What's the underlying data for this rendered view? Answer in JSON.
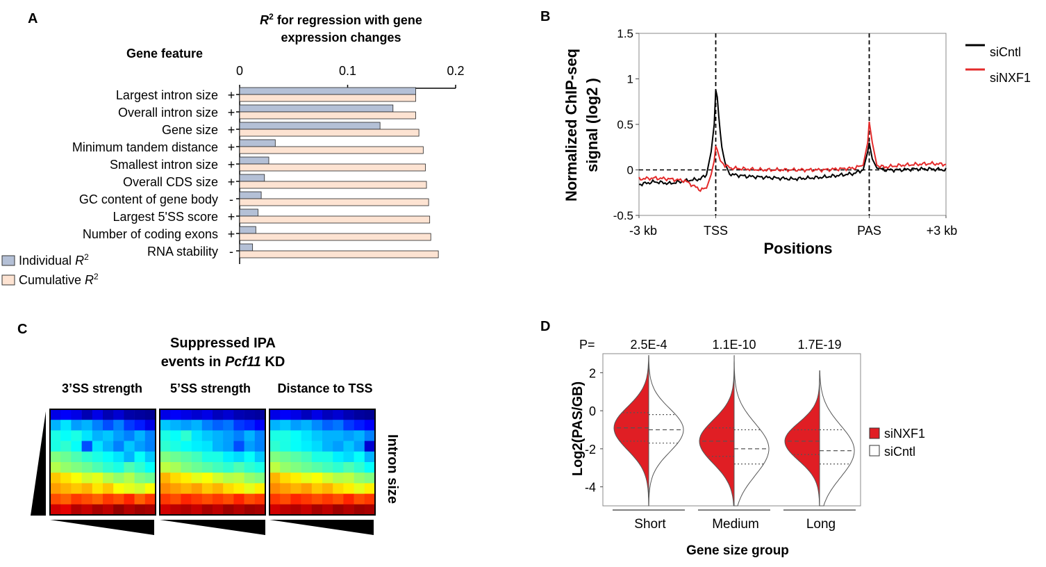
{
  "colors": {
    "individual": "#b4c0d6",
    "cumulative": "#fde3d2",
    "siCntl": "#000000",
    "siNXF1": "#e32a2a",
    "violin_red": "#e01e24"
  },
  "panels": {
    "A": "A",
    "B": "B",
    "C": "C",
    "D": "D"
  },
  "chart_data": [
    {
      "panel": "A",
      "type": "bar",
      "orientation": "horizontal",
      "title_r": "R",
      "title_sup": "2",
      "title_line1_rest": " for regression with gene",
      "title_line2": "expression changes",
      "category_header": "Gene feature",
      "categories": [
        "Largest intron size",
        "Overall intron size",
        "Gene size",
        "Minimum tandem distance",
        "Smallest intron size",
        "Overall CDS size",
        "GC content of gene body",
        "Largest 5'SS score",
        "Number of coding exons",
        "RNA stability"
      ],
      "signs": [
        "+",
        "+",
        "+",
        "+",
        "+",
        "+",
        "-",
        "+",
        "+",
        "-"
      ],
      "xlim": [
        0,
        0.2
      ],
      "xticks": [
        0,
        0.1,
        0.2
      ],
      "xtick_labels": [
        "0",
        "0.1",
        "0.2"
      ],
      "series": [
        {
          "name": "Individual R2",
          "legend_text": "Individual ",
          "values": [
            0.163,
            0.142,
            0.13,
            0.033,
            0.027,
            0.023,
            0.02,
            0.017,
            0.015,
            0.012
          ]
        },
        {
          "name": "Cumulative R2",
          "legend_text": "Cumulative ",
          "values": [
            0.163,
            0.163,
            0.166,
            0.17,
            0.172,
            0.173,
            0.175,
            0.176,
            0.177,
            0.184
          ]
        }
      ]
    },
    {
      "panel": "B",
      "type": "line",
      "ylabel_line1": "Normalized ChIP-seq",
      "ylabel_line2": "signal (log2 )",
      "xlabel": "Positions",
      "ylim": [
        -0.5,
        1.5
      ],
      "yticks": [
        -0.5,
        0,
        0.5,
        1,
        1.5
      ],
      "ytick_labels": [
        "-0.5",
        "0",
        "0.5",
        "1",
        "1.5"
      ],
      "xlim": [
        0,
        1
      ],
      "xticks": [
        0,
        0.25,
        0.75,
        1
      ],
      "xtick_labels": [
        "-3 kb",
        "TSS",
        "PAS",
        "+3 kb"
      ],
      "vlines": [
        0.25,
        0.75
      ],
      "legend": [
        "siCntl",
        "siNXF1"
      ],
      "series": [
        {
          "name": "siCntl",
          "points": [
            [
              0,
              -0.16
            ],
            [
              0.05,
              -0.13
            ],
            [
              0.1,
              -0.15
            ],
            [
              0.15,
              -0.12
            ],
            [
              0.2,
              -0.1
            ],
            [
              0.22,
              -0.05
            ],
            [
              0.235,
              0.2
            ],
            [
              0.245,
              0.5
            ],
            [
              0.25,
              0.88
            ],
            [
              0.255,
              0.8
            ],
            [
              0.262,
              0.5
            ],
            [
              0.27,
              0.25
            ],
            [
              0.28,
              0.08
            ],
            [
              0.29,
              -0.02
            ],
            [
              0.3,
              -0.05
            ],
            [
              0.35,
              -0.07
            ],
            [
              0.4,
              -0.08
            ],
            [
              0.45,
              -0.09
            ],
            [
              0.5,
              -0.1
            ],
            [
              0.55,
              -0.09
            ],
            [
              0.6,
              -0.08
            ],
            [
              0.65,
              -0.06
            ],
            [
              0.7,
              -0.04
            ],
            [
              0.73,
              0.0
            ],
            [
              0.745,
              0.2
            ],
            [
              0.75,
              0.3
            ],
            [
              0.76,
              0.12
            ],
            [
              0.775,
              0.02
            ],
            [
              0.8,
              0.0
            ],
            [
              0.85,
              0.0
            ],
            [
              0.9,
              0.01
            ],
            [
              0.95,
              0.01
            ],
            [
              1,
              0.0
            ]
          ]
        },
        {
          "name": "siNXF1",
          "points": [
            [
              0,
              -0.1
            ],
            [
              0.05,
              -0.09
            ],
            [
              0.1,
              -0.1
            ],
            [
              0.15,
              -0.12
            ],
            [
              0.2,
              -0.22
            ],
            [
              0.22,
              -0.2
            ],
            [
              0.235,
              -0.05
            ],
            [
              0.245,
              0.1
            ],
            [
              0.25,
              0.26
            ],
            [
              0.255,
              0.22
            ],
            [
              0.265,
              0.1
            ],
            [
              0.28,
              0.05
            ],
            [
              0.3,
              0.02
            ],
            [
              0.35,
              0.01
            ],
            [
              0.4,
              0.0
            ],
            [
              0.45,
              0.0
            ],
            [
              0.5,
              0.0
            ],
            [
              0.55,
              0.0
            ],
            [
              0.6,
              0.0
            ],
            [
              0.65,
              0.01
            ],
            [
              0.7,
              0.02
            ],
            [
              0.73,
              0.05
            ],
            [
              0.745,
              0.3
            ],
            [
              0.75,
              0.53
            ],
            [
              0.76,
              0.3
            ],
            [
              0.775,
              0.05
            ],
            [
              0.8,
              0.03
            ],
            [
              0.85,
              0.05
            ],
            [
              0.9,
              0.06
            ],
            [
              0.95,
              0.07
            ],
            [
              1,
              0.06
            ]
          ]
        }
      ]
    },
    {
      "panel": "C",
      "type": "heatmap",
      "title_line1": "Suppressed IPA",
      "title_line2_prefix": "events in ",
      "title_line2_italic": "Pcf11",
      "title_line2_suffix": " KD",
      "subplot_titles": [
        "3’SS strength",
        "5’SS strength",
        "Distance to TSS"
      ],
      "ylabel": "Intron size",
      "rows": 10,
      "cols": 10,
      "matrices": [
        [
          [
            0.1,
            0.12,
            0.1,
            0.05,
            0.1,
            0.05,
            0.08,
            0.04,
            0.03,
            0.02
          ],
          [
            0.3,
            0.35,
            0.28,
            0.3,
            0.25,
            0.2,
            0.25,
            0.18,
            0.15,
            0.1
          ],
          [
            0.4,
            0.38,
            0.4,
            0.35,
            0.3,
            0.32,
            0.28,
            0.25,
            0.3,
            0.25
          ],
          [
            0.4,
            0.42,
            0.38,
            0.2,
            0.35,
            0.3,
            0.25,
            0.32,
            0.28,
            0.25
          ],
          [
            0.5,
            0.48,
            0.45,
            0.42,
            0.4,
            0.38,
            0.35,
            0.3,
            0.38,
            0.32
          ],
          [
            0.55,
            0.52,
            0.5,
            0.48,
            0.45,
            0.42,
            0.4,
            0.45,
            0.42,
            0.38
          ],
          [
            0.68,
            0.65,
            0.62,
            0.58,
            0.6,
            0.55,
            0.52,
            0.55,
            0.5,
            0.48
          ],
          [
            0.72,
            0.7,
            0.68,
            0.7,
            0.65,
            0.68,
            0.62,
            0.6,
            0.58,
            0.62
          ],
          [
            0.8,
            0.78,
            0.82,
            0.8,
            0.78,
            0.82,
            0.8,
            0.84,
            0.78,
            0.82
          ],
          [
            0.92,
            0.9,
            0.95,
            0.93,
            0.96,
            0.94,
            0.98,
            0.95,
            0.97,
            0.96
          ]
        ],
        [
          [
            0.1,
            0.12,
            0.1,
            0.08,
            0.1,
            0.06,
            0.08,
            0.05,
            0.04,
            0.03
          ],
          [
            0.32,
            0.3,
            0.28,
            0.3,
            0.25,
            0.22,
            0.24,
            0.18,
            0.16,
            0.12
          ],
          [
            0.4,
            0.38,
            0.42,
            0.35,
            0.32,
            0.3,
            0.28,
            0.25,
            0.3,
            0.25
          ],
          [
            0.42,
            0.4,
            0.38,
            0.36,
            0.35,
            0.3,
            0.28,
            0.2,
            0.28,
            0.25
          ],
          [
            0.5,
            0.48,
            0.46,
            0.44,
            0.4,
            0.4,
            0.36,
            0.34,
            0.38,
            0.32
          ],
          [
            0.56,
            0.54,
            0.5,
            0.48,
            0.46,
            0.44,
            0.42,
            0.45,
            0.42,
            0.4
          ],
          [
            0.7,
            0.66,
            0.64,
            0.6,
            0.62,
            0.58,
            0.55,
            0.56,
            0.52,
            0.5
          ],
          [
            0.74,
            0.72,
            0.7,
            0.72,
            0.68,
            0.7,
            0.66,
            0.64,
            0.6,
            0.64
          ],
          [
            0.82,
            0.8,
            0.84,
            0.82,
            0.8,
            0.82,
            0.8,
            0.84,
            0.8,
            0.82
          ],
          [
            0.92,
            0.94,
            0.95,
            0.93,
            0.96,
            0.94,
            0.97,
            0.95,
            0.97,
            0.96
          ]
        ],
        [
          [
            0.1,
            0.12,
            0.1,
            0.06,
            0.1,
            0.06,
            0.08,
            0.05,
            0.03,
            0.02
          ],
          [
            0.3,
            0.32,
            0.28,
            0.3,
            0.26,
            0.22,
            0.24,
            0.18,
            0.15,
            0.12
          ],
          [
            0.4,
            0.4,
            0.38,
            0.35,
            0.32,
            0.3,
            0.3,
            0.28,
            0.3,
            0.25
          ],
          [
            0.42,
            0.4,
            0.38,
            0.36,
            0.34,
            0.3,
            0.28,
            0.32,
            0.28,
            0.08
          ],
          [
            0.5,
            0.48,
            0.46,
            0.44,
            0.4,
            0.4,
            0.36,
            0.34,
            0.38,
            0.3
          ],
          [
            0.56,
            0.52,
            0.5,
            0.48,
            0.46,
            0.44,
            0.42,
            0.45,
            0.42,
            0.38
          ],
          [
            0.7,
            0.66,
            0.64,
            0.6,
            0.62,
            0.58,
            0.55,
            0.56,
            0.52,
            0.5
          ],
          [
            0.74,
            0.72,
            0.7,
            0.72,
            0.68,
            0.7,
            0.66,
            0.64,
            0.6,
            0.64
          ],
          [
            0.82,
            0.8,
            0.84,
            0.82,
            0.8,
            0.82,
            0.8,
            0.84,
            0.8,
            0.82
          ],
          [
            0.92,
            0.94,
            0.95,
            0.93,
            0.96,
            0.94,
            0.97,
            0.95,
            0.97,
            0.96
          ]
        ]
      ]
    },
    {
      "panel": "D",
      "type": "violin",
      "ylabel": "Log2(PAS/GB)",
      "xlabel": "Gene size group",
      "p_prefix": "P=",
      "categories": [
        "Short",
        "Medium",
        "Long"
      ],
      "p_values": [
        "2.5E-4",
        "1.1E-10",
        "1.7E-19"
      ],
      "ylim": [
        -5,
        3
      ],
      "yticks": [
        -4,
        -2,
        0,
        2
      ],
      "ytick_labels": [
        "-4",
        "-2",
        "0",
        "2"
      ],
      "legend": [
        "siNXF1",
        "siCntl"
      ],
      "groups": [
        {
          "siNXF1": {
            "median": -0.9,
            "q1": -1.6,
            "q3": -0.1,
            "min": -5,
            "max": 2.9
          },
          "siCntl": {
            "median": -1.0,
            "q1": -1.7,
            "q3": -0.2,
            "min": -5,
            "max": 2.9
          }
        },
        {
          "siNXF1": {
            "median": -1.6,
            "q1": -2.4,
            "q3": -0.9,
            "min": -5,
            "max": 2.9
          },
          "siCntl": {
            "median": -2.0,
            "q1": -2.8,
            "q3": -1.0,
            "min": -5,
            "max": 2.9
          }
        },
        {
          "siNXF1": {
            "median": -1.6,
            "q1": -2.3,
            "q3": -1.0,
            "min": -5,
            "max": 2.1
          },
          "siCntl": {
            "median": -2.1,
            "q1": -2.8,
            "q3": -1.0,
            "min": -5,
            "max": 2.1
          }
        }
      ]
    }
  ]
}
